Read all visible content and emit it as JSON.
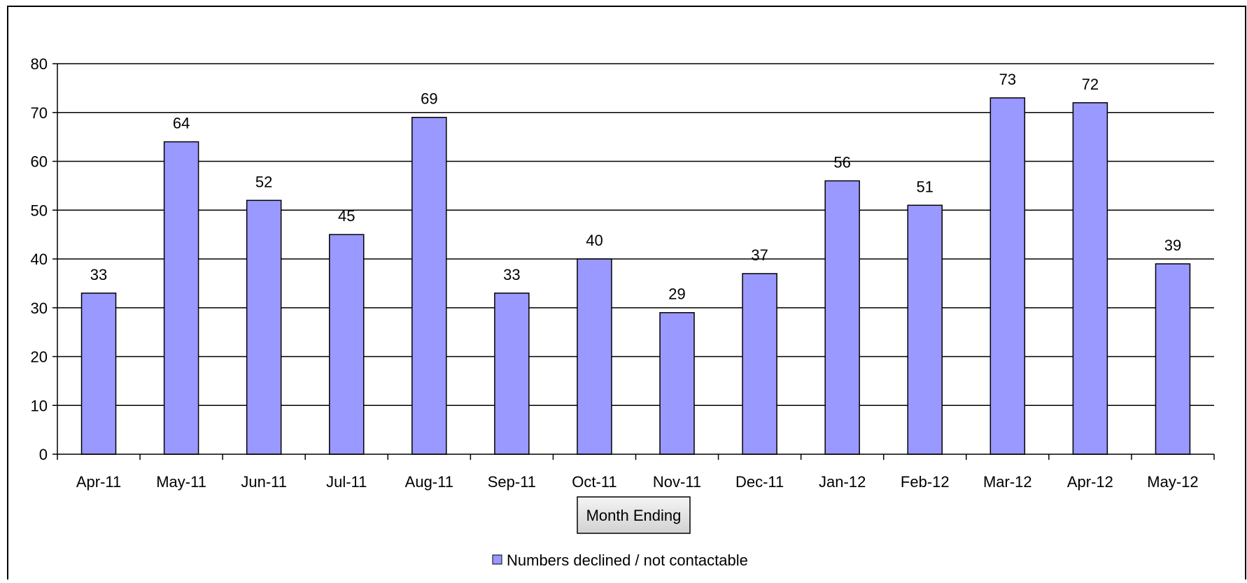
{
  "chart_data": {
    "type": "bar",
    "title": "",
    "xlabel": "Month Ending",
    "ylabel": "",
    "categories": [
      "Apr-11",
      "May-11",
      "Jun-11",
      "Jul-11",
      "Aug-11",
      "Sep-11",
      "Oct-11",
      "Nov-11",
      "Dec-11",
      "Jan-12",
      "Feb-12",
      "Mar-12",
      "Apr-12",
      "May-12"
    ],
    "series": [
      {
        "name": "Numbers declined / not contactable",
        "values": [
          33,
          64,
          52,
          45,
          69,
          33,
          40,
          29,
          37,
          56,
          51,
          73,
          72,
          39
        ],
        "color": "#9999ff"
      }
    ],
    "ylim": [
      0,
      80
    ],
    "yticks": [
      0,
      10,
      20,
      30,
      40,
      50,
      60,
      70,
      80
    ],
    "grid": true,
    "data_labels": true,
    "legend_position": "bottom"
  }
}
